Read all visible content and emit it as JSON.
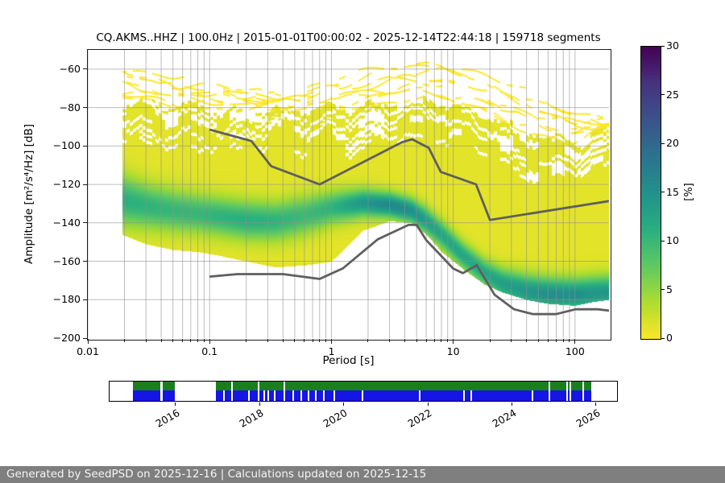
{
  "title": "CQ.AKMS..HHZ | 100.0Hz | 2015-01-01T00:00:02 - 2025-12-14T22:44:18 | 159718 segments",
  "footer": "Generated by SeedPSD on 2025-12-16 | Calculations updated on 2025-12-15",
  "chart_data": {
    "type": "heatmap",
    "title": "CQ.AKMS..HHZ | 100.0Hz | 2015-01-01T00:00:02 - 2025-12-14T22:44:18 | 159718 segments",
    "xlabel": "Period [s]",
    "ylabel": "Amplitude [m²/s⁴/Hz] [dB]",
    "colorbar_label": "[%]",
    "x_scale": "log",
    "xlim": [
      0.01,
      190
    ],
    "ylim": [
      -200,
      -50
    ],
    "grid": true,
    "x_ticks": [
      {
        "v": 0.01,
        "label": "0.01"
      },
      {
        "v": 0.1,
        "label": "0.1"
      },
      {
        "v": 1,
        "label": "1"
      },
      {
        "v": 10,
        "label": "10"
      },
      {
        "v": 100,
        "label": "100"
      }
    ],
    "y_ticks": [
      {
        "v": -60,
        "label": "−60"
      },
      {
        "v": -80,
        "label": "−80"
      },
      {
        "v": -100,
        "label": "−100"
      },
      {
        "v": -120,
        "label": "−120"
      },
      {
        "v": -140,
        "label": "−140"
      },
      {
        "v": -160,
        "label": "−160"
      },
      {
        "v": -180,
        "label": "−180"
      },
      {
        "v": -200,
        "label": "−200"
      }
    ],
    "colorbar_ticks": [
      {
        "v": 0,
        "label": "0"
      },
      {
        "v": 5,
        "label": "5"
      },
      {
        "v": 10,
        "label": "10"
      },
      {
        "v": 15,
        "label": "15"
      },
      {
        "v": 20,
        "label": "20"
      },
      {
        "v": 25,
        "label": "25"
      },
      {
        "v": 30,
        "label": "30"
      }
    ],
    "colorbar_max_pct": 30,
    "colormap": {
      "name": "viridis_r",
      "stops": [
        "#440154",
        "#46327e",
        "#3b528b",
        "#2c728e",
        "#21918c",
        "#28ae80",
        "#5ec962",
        "#addc30",
        "#fde725"
      ]
    },
    "ppsd": {
      "comment": "probability ridge of the PPSD vs period; pct = peak probability [%], sigma in dB; top/bottom = extent of nonzero probability; streak_top = upper limit of sparse outlier curves",
      "periods_s": [
        0.019,
        0.03,
        0.05,
        0.08,
        0.12,
        0.2,
        0.35,
        0.6,
        1.0,
        1.8,
        3.0,
        4.5,
        6.0,
        8.0,
        12,
        18,
        25,
        40,
        60,
        100,
        140,
        190
      ],
      "ridge_db": [
        -128,
        -131,
        -133.5,
        -135,
        -136.5,
        -138.5,
        -139,
        -136,
        -132,
        -129.5,
        -130.5,
        -133.5,
        -139,
        -146,
        -157,
        -166,
        -171.5,
        -175.5,
        -177,
        -177.5,
        -176.5,
        -176
      ],
      "peak_pct": [
        10,
        9.5,
        9,
        9,
        9.5,
        10,
        9.5,
        8.5,
        9.5,
        13,
        15,
        14,
        12,
        11,
        11,
        11,
        12,
        13,
        14,
        14,
        13,
        13
      ],
      "sigma_db": [
        9,
        8,
        7.5,
        7,
        7,
        7,
        7,
        7,
        6,
        5,
        4.5,
        4.5,
        5,
        5,
        5,
        5,
        5.5,
        6,
        6,
        6,
        6,
        6
      ],
      "top_db": [
        -76,
        -77,
        -79,
        -80,
        -80,
        -80,
        -81,
        -81,
        -80,
        -79,
        -77,
        -75,
        -76,
        -78,
        -80,
        -84,
        -88,
        -92,
        -95,
        -97,
        -93,
        -90
      ],
      "bottom_db": [
        -146,
        -151,
        -154,
        -155,
        -157,
        -160,
        -163,
        -162,
        -160,
        -144,
        -139,
        -140,
        -146,
        -155,
        -164,
        -172,
        -176,
        -180,
        -182,
        -183,
        -181,
        -180
      ],
      "streak_top_db": [
        -58,
        -62,
        -65,
        -66,
        -68,
        -71,
        -72,
        -70,
        -66,
        -62,
        -58,
        -56.5,
        -56,
        -56,
        -58,
        -63,
        -67,
        -72,
        -78,
        -82,
        -85,
        -87
      ],
      "base_pct": 1.2
    },
    "noise_models": {
      "color": "#5f5f5f",
      "nhnm": [
        [
          0.1,
          -91.5
        ],
        [
          0.22,
          -97.4
        ],
        [
          0.32,
          -110.5
        ],
        [
          0.8,
          -120
        ],
        [
          3.8,
          -98
        ],
        [
          4.6,
          -96.5
        ],
        [
          6.3,
          -101
        ],
        [
          7.9,
          -113.5
        ],
        [
          15.4,
          -120
        ],
        [
          20,
          -138.5
        ],
        [
          190,
          -128.7
        ]
      ],
      "nlnm": [
        [
          0.1,
          -168
        ],
        [
          0.17,
          -166.7
        ],
        [
          0.4,
          -166.7
        ],
        [
          0.8,
          -169.2
        ],
        [
          1.24,
          -163.7
        ],
        [
          2.4,
          -148.6
        ],
        [
          4.3,
          -141.1
        ],
        [
          5,
          -141.1
        ],
        [
          6,
          -149
        ],
        [
          10,
          -163.8
        ],
        [
          12,
          -166.2
        ],
        [
          15.6,
          -162.1
        ],
        [
          21.9,
          -177.5
        ],
        [
          31.6,
          -185
        ],
        [
          45,
          -187.5
        ],
        [
          70,
          -187.5
        ],
        [
          101,
          -185
        ],
        [
          154,
          -185
        ],
        [
          190,
          -185.7
        ]
      ]
    },
    "availability": {
      "green_color": "#1b7e1b",
      "blue_color": "#1515e6",
      "blocks_pct": [
        [
          4.6,
          10.0
        ],
        [
          10.4,
          12.8
        ],
        [
          21.0,
          94.9
        ]
      ],
      "blue_gap_pct": [
        22.6,
        24.1,
        27.4,
        29.3,
        30.4,
        31.2,
        32.6,
        34.5,
        36.2,
        37.8,
        39.2,
        40.7,
        42.2,
        44.3,
        49.8,
        61.1,
        69.9,
        71.2,
        83.4,
        86.7,
        90.2,
        90.8,
        93.4
      ],
      "green_gap_pct": [
        24.1,
        29.3,
        34.5,
        86.7,
        90.2,
        90.8,
        93.4
      ],
      "year_ticks": [
        {
          "pct": 13.1,
          "label": "2016"
        },
        {
          "pct": 29.6,
          "label": "2018"
        },
        {
          "pct": 46.1,
          "label": "2020"
        },
        {
          "pct": 62.7,
          "label": "2022"
        },
        {
          "pct": 79.2,
          "label": "2024"
        },
        {
          "pct": 95.7,
          "label": "2026"
        }
      ]
    }
  }
}
